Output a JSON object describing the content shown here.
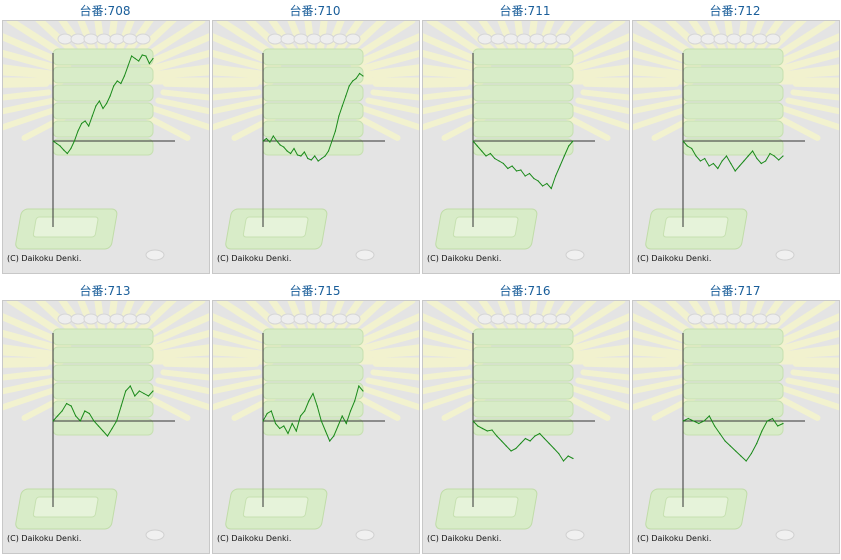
{
  "copyright": "(C) Daikoku Denki.",
  "colors": {
    "line": "#1a8a1a",
    "axis": "#333333",
    "title": "#1a5e9a",
    "panel_bg": "#e4e4e4"
  },
  "chart_data": [
    {
      "type": "line",
      "title": "台番:708",
      "values": [
        0,
        -5,
        -10,
        -18,
        -25,
        -15,
        0,
        20,
        35,
        40,
        30,
        50,
        70,
        80,
        65,
        75,
        90,
        110,
        120,
        115,
        130,
        150,
        170,
        165,
        160,
        172,
        170,
        155,
        165
      ]
    },
    {
      "type": "line",
      "title": "台番:710",
      "values": [
        0,
        5,
        -2,
        10,
        0,
        -8,
        -12,
        -20,
        -25,
        -15,
        -28,
        -30,
        -22,
        -35,
        -38,
        -30,
        -40,
        -35,
        -30,
        -20,
        0,
        20,
        50,
        70,
        90,
        110,
        120,
        125,
        135,
        130
      ]
    },
    {
      "type": "line",
      "title": "台番:711",
      "values": [
        0,
        -10,
        -20,
        -30,
        -25,
        -35,
        -40,
        -45,
        -55,
        -50,
        -60,
        -58,
        -70,
        -65,
        -75,
        -80,
        -90,
        -85,
        -95,
        -70,
        -50,
        -30,
        -10,
        0
      ]
    },
    {
      "type": "line",
      "title": "台番:712",
      "values": [
        0,
        -10,
        -15,
        -30,
        -40,
        -35,
        -50,
        -45,
        -55,
        -40,
        -30,
        -45,
        -60,
        -50,
        -40,
        -30,
        -20,
        -35,
        -45,
        -40,
        -25,
        -30,
        -38,
        -30
      ]
    },
    {
      "type": "line",
      "title": "台番:713",
      "values": [
        0,
        10,
        20,
        35,
        30,
        10,
        0,
        20,
        15,
        0,
        -10,
        -20,
        -30,
        -15,
        0,
        30,
        60,
        70,
        50,
        60,
        55,
        50,
        60
      ]
    },
    {
      "type": "line",
      "title": "台番:715",
      "values": [
        0,
        15,
        20,
        -5,
        -15,
        -10,
        -25,
        -5,
        -20,
        10,
        20,
        40,
        55,
        30,
        0,
        -20,
        -40,
        -30,
        -10,
        10,
        -5,
        20,
        40,
        70,
        60
      ]
    },
    {
      "type": "line",
      "title": "台番:716",
      "values": [
        0,
        -10,
        -15,
        -20,
        -18,
        -30,
        -40,
        -50,
        -60,
        -55,
        -45,
        -35,
        -40,
        -30,
        -25,
        -35,
        -45,
        -55,
        -65,
        -80,
        -70,
        -75
      ]
    },
    {
      "type": "line",
      "title": "台番:717",
      "values": [
        0,
        5,
        0,
        -5,
        0,
        10,
        -10,
        -25,
        -40,
        -50,
        -60,
        -70,
        -80,
        -65,
        -45,
        -20,
        0,
        5,
        -10,
        -5
      ]
    }
  ]
}
